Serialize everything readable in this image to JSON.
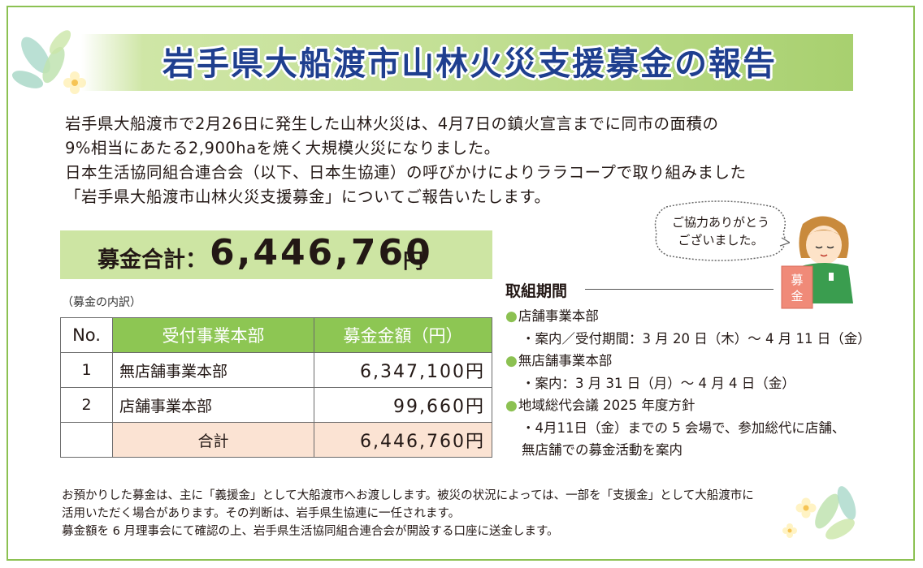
{
  "title": "岩手県大船渡市山林火災支援募金の報告",
  "intro": [
    "岩手県大船渡市で2月26日に発生した山林火災は、4月7日の鎮火宣言までに同市の面積の",
    "9%相当にあたる2,900haを焼く大規模火災になりました。",
    "日本生活協同組合連合会（以下、日本生協連）の呼びかけによりララコープで取り組みました",
    "「岩手県大船渡市山林火災支援募金」についてご報告いたします。"
  ],
  "total": {
    "label": "募金合計：",
    "amount": "6,446,760",
    "unit": "円"
  },
  "breakdown_note": "（募金の内訳）",
  "table": {
    "headers": [
      "No.",
      "受付事業本部",
      "募金金額（円）"
    ],
    "rows": [
      {
        "no": "1",
        "department": "無店舗事業本部",
        "amount": "6,347,100円"
      },
      {
        "no": "2",
        "department": "店舗事業本部",
        "amount": "99,660円"
      }
    ],
    "total_label": "合計",
    "total_amount": "6,446,760円"
  },
  "speech_bubble": [
    "ご協力ありがとう",
    "ございました。"
  ],
  "donation_box_label": "募金",
  "period": {
    "heading": "取組期間",
    "items": [
      {
        "title": "店舗事業本部",
        "details": [
          "・案内／受付期間：3 月 20 日（木）～ 4 月 11 日（金）"
        ]
      },
      {
        "title": "無店舗事業本部",
        "details": [
          "・案内：3 月 31 日（月）～ 4 月 4 日（金）"
        ]
      },
      {
        "title": "地域総代会議 2025 年度方針",
        "details": [
          "・4月11日（金）までの 5 会場で、参加総代に店舗、",
          "無店舗での募金活動を案内"
        ]
      }
    ]
  },
  "footer": [
    "お預かりした募金は、主に「義援金」として大船渡市へお渡しします。被災の状況によっては、一部を「支援金」として大船渡市に",
    "活用いただく場合があります。その判断は、岩手県生協連に一任されます。",
    "募金額を 6 月理事会にて確認の上、岩手県生活協同組合連合会が開設する口座に送金します。"
  ],
  "colors": {
    "frame_green": "#8cc152",
    "title_blue": "#1f3f8f",
    "header_green": "#8dc653",
    "total_band": "#cde5a3",
    "total_row_peach": "#fbe3d3",
    "box_pink": "#f08a78"
  },
  "icons": [
    "leaf-decoration-icon",
    "flower-icon",
    "staff-character-icon",
    "donation-box-icon"
  ]
}
